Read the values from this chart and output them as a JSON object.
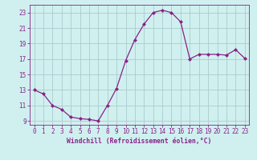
{
  "x": [
    0,
    1,
    2,
    3,
    4,
    5,
    6,
    7,
    8,
    9,
    10,
    11,
    12,
    13,
    14,
    15,
    16,
    17,
    18,
    19,
    20,
    21,
    22,
    23
  ],
  "y": [
    13,
    12.5,
    11,
    10.5,
    9.5,
    9.3,
    9.2,
    9.0,
    11.0,
    13.2,
    16.8,
    19.5,
    21.5,
    23.0,
    23.3,
    23.0,
    21.8,
    17.0,
    17.6,
    17.6,
    17.6,
    17.5,
    18.2,
    17.1
  ],
  "line_color": "#882288",
  "marker": "D",
  "marker_size": 2.0,
  "bg_color": "#d0f0f0",
  "grid_color": "#aacccc",
  "xlabel": "Windchill (Refroidissement éolien,°C)",
  "xlabel_color": "#882288",
  "tick_color": "#882288",
  "axis_color": "#882288",
  "ylim": [
    8.5,
    24.0
  ],
  "xlim": [
    -0.5,
    23.5
  ],
  "yticks": [
    9,
    11,
    13,
    15,
    17,
    19,
    21,
    23
  ],
  "xticks": [
    0,
    1,
    2,
    3,
    4,
    5,
    6,
    7,
    8,
    9,
    10,
    11,
    12,
    13,
    14,
    15,
    16,
    17,
    18,
    19,
    20,
    21,
    22,
    23
  ],
  "tick_fontsize": 5.5,
  "xlabel_fontsize": 5.8,
  "line_width": 0.9
}
